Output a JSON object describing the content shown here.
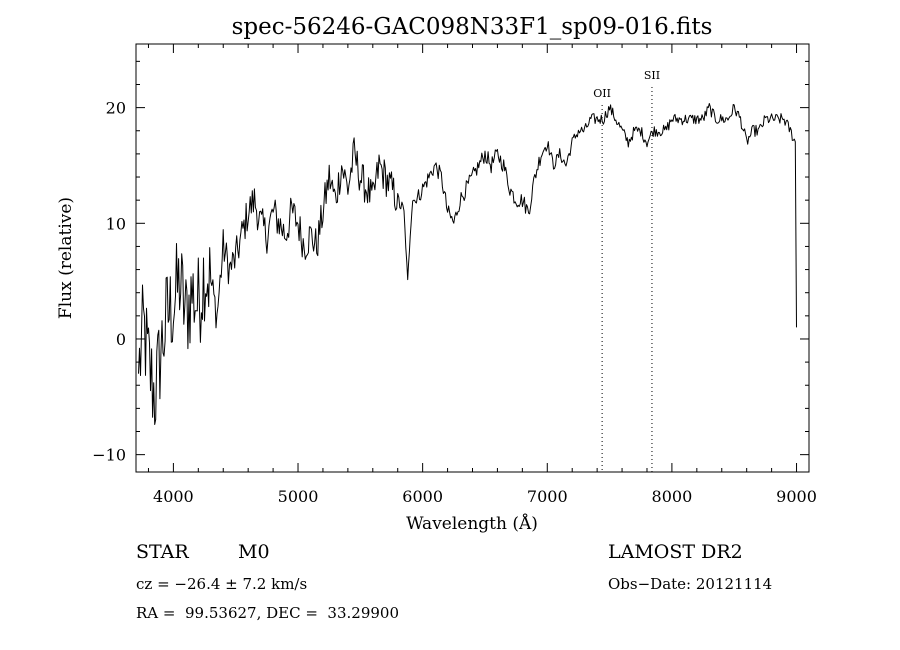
{
  "chart_data": {
    "type": "line",
    "title": "spec-56246-GAC098N33F1_sp09-016.fits",
    "xlabel": "Wavelength (Å)",
    "ylabel": "Flux (relative)",
    "xlim": [
      3700,
      9100
    ],
    "ylim": [
      -11.5,
      25.5
    ],
    "x_ticks": [
      4000,
      5000,
      6000,
      7000,
      8000,
      9000
    ],
    "x_tick_labels": [
      "4000",
      "5000",
      "6000",
      "7000",
      "8000",
      "9000"
    ],
    "y_ticks": [
      -10,
      0,
      10,
      20
    ],
    "y_tick_labels": [
      "−10",
      "0",
      "10",
      "20"
    ],
    "grid": false,
    "line_color": "#000000",
    "series": [
      {
        "x": [
          3720,
          3760,
          3800,
          3850,
          3900,
          3950,
          4000,
          4050,
          4100,
          4150,
          4200,
          4250,
          4300,
          4350,
          4400,
          4450,
          4500,
          4550,
          4600,
          4650,
          4700,
          4750,
          4800,
          4850,
          4900,
          4950,
          5000,
          5050,
          5100,
          5150,
          5200,
          5250,
          5300,
          5350,
          5400,
          5450,
          5500,
          5550,
          5600,
          5650,
          5700,
          5750,
          5800,
          5850,
          5880,
          5900,
          5920,
          5950,
          6000,
          6050,
          6100,
          6150,
          6200,
          6250,
          6300,
          6350,
          6400,
          6450,
          6500,
          6550,
          6600,
          6650,
          6700,
          6750,
          6800,
          6850,
          6900,
          6950,
          7000,
          7050,
          7100,
          7150,
          7200,
          7250,
          7300,
          7350,
          7400,
          7450,
          7500,
          7550,
          7600,
          7650,
          7700,
          7750,
          7800,
          7850,
          7900,
          7950,
          8000,
          8050,
          8100,
          8150,
          8200,
          8250,
          8300,
          8350,
          8400,
          8450,
          8500,
          8550,
          8600,
          8650,
          8700,
          8750,
          8800,
          8850,
          8900,
          8950,
          8990,
          9000
        ],
        "y": [
          -3,
          1,
          -2,
          -5,
          -1,
          2,
          3,
          5,
          2,
          4,
          3,
          6,
          5,
          2,
          8,
          6,
          7,
          9,
          11,
          12,
          10,
          9,
          11,
          10,
          9,
          11,
          10,
          8,
          9,
          8,
          11,
          14,
          12,
          15,
          13,
          16,
          14,
          13,
          12,
          15,
          14,
          13,
          12,
          11,
          5,
          9,
          12,
          12,
          13,
          14,
          15,
          14,
          11,
          10,
          12,
          13,
          14,
          15,
          16,
          15,
          16,
          15,
          13,
          12,
          12,
          11,
          14,
          16,
          17,
          15,
          16,
          15,
          17,
          18,
          18,
          19,
          19,
          19,
          20,
          19,
          18,
          17,
          18,
          18,
          17,
          18,
          18,
          18,
          19,
          19,
          19,
          19,
          19,
          19,
          20,
          19,
          19,
          19,
          20,
          19,
          17,
          18,
          18,
          19,
          19,
          19,
          19,
          18,
          17,
          1
        ]
      }
    ],
    "annotations": [
      {
        "label": "OII",
        "x": 7440,
        "line_style": "dotted"
      },
      {
        "label": "SII",
        "x": 7840,
        "line_style": "dotted"
      }
    ]
  },
  "info": {
    "object_class": "STAR",
    "subclass": "M0",
    "survey": "LAMOST DR2",
    "cz": "cz = −26.4 ± 7.2 km/s",
    "obs_date": "Obs−Date: 20121114",
    "coords": "RA =  99.53627, DEC =  33.29900"
  }
}
